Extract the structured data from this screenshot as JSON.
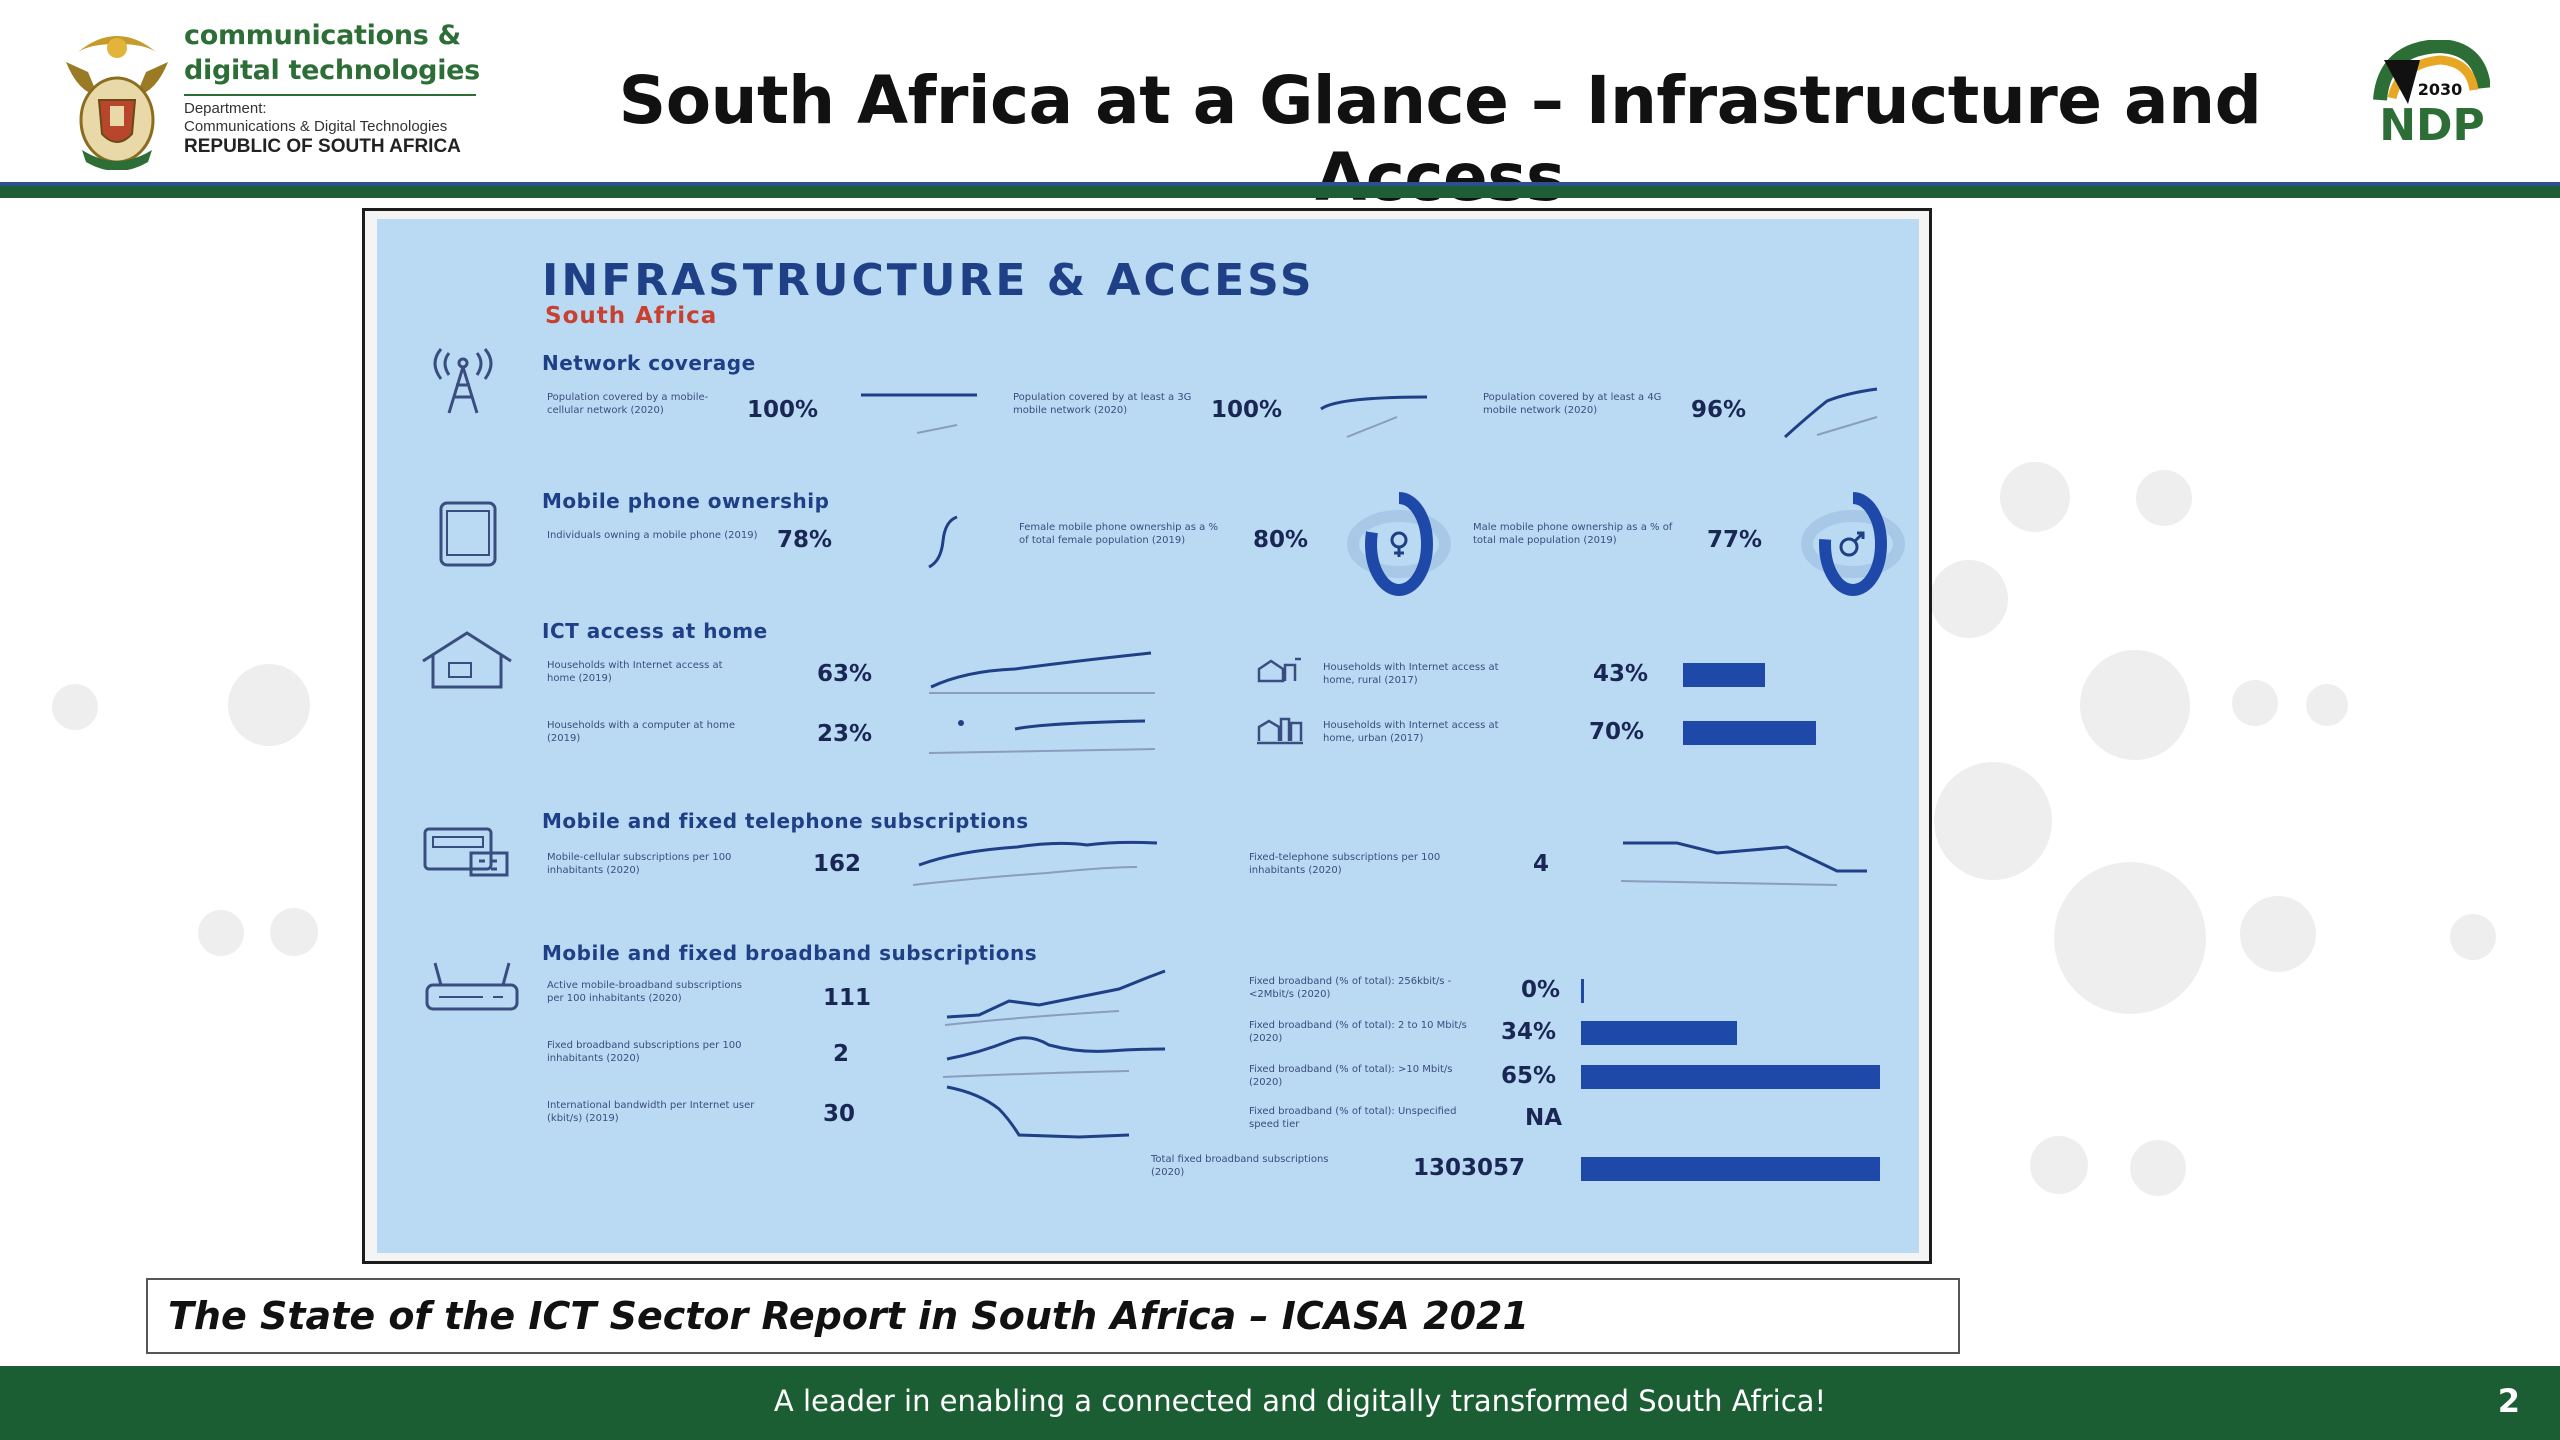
{
  "header": {
    "department_name_line1": "communications &",
    "department_name_line2": "digital technologies",
    "department_label": "Department:",
    "department_full": "Communications & Digital Technologies",
    "republic": "REPUBLIC OF SOUTH AFRICA",
    "title": "South Africa at a Glance – Infrastructure and Access",
    "ndp_year": "2030",
    "ndp_text": "NDP"
  },
  "infographic": {
    "title": "INFRASTRUCTURE & ACCESS",
    "subtitle": "South Africa",
    "network_coverage": {
      "heading": "Network coverage",
      "items": [
        {
          "desc": "Population covered by a mobile-cellular network (2020)",
          "value": "100%"
        },
        {
          "desc": "Population covered by at least a 3G mobile network (2020)",
          "value": "100%"
        },
        {
          "desc": "Population covered by at least a 4G mobile network (2020)",
          "value": "96%"
        }
      ]
    },
    "mobile_ownership": {
      "heading": "Mobile phone ownership",
      "items": [
        {
          "desc": "Individuals owning a mobile phone (2019)",
          "value": "78%"
        },
        {
          "desc": "Female mobile phone ownership as a % of total female population (2019)",
          "value": "80%",
          "ring_fraction": 0.8
        },
        {
          "desc": "Male mobile phone ownership as a % of total male population (2019)",
          "value": "77%",
          "ring_fraction": 0.77
        }
      ]
    },
    "ict_home": {
      "heading": "ICT access at home",
      "items": [
        {
          "desc": "Households with Internet access at home (2019)",
          "value": "63%"
        },
        {
          "desc": "Households with a computer at home (2019)",
          "value": "23%"
        },
        {
          "desc": "Households with Internet access at home, rural (2017)",
          "value": "43%",
          "bar_fraction": 0.43
        },
        {
          "desc": "Households with Internet access at home, urban (2017)",
          "value": "70%",
          "bar_fraction": 0.7
        }
      ]
    },
    "telephone": {
      "heading": "Mobile and fixed telephone subscriptions",
      "items": [
        {
          "desc": "Mobile-cellular subscriptions per 100 inhabitants (2020)",
          "value": "162"
        },
        {
          "desc": "Fixed-telephone subscriptions per 100 inhabitants (2020)",
          "value": "4"
        }
      ]
    },
    "broadband": {
      "heading": "Mobile and fixed broadband subscriptions",
      "left_items": [
        {
          "desc": "Active mobile-broadband subscriptions per 100 inhabitants (2020)",
          "value": "111"
        },
        {
          "desc": "Fixed broadband subscriptions per 100 inhabitants (2020)",
          "value": "2"
        },
        {
          "desc": "International bandwidth per Internet user (kbit/s) (2019)",
          "value": "30"
        }
      ],
      "right_items": [
        {
          "desc": "Fixed broadband (% of total): 256kbit/s - <2Mbit/s (2020)",
          "value": "0%",
          "bar_fraction": 0.0
        },
        {
          "desc": "Fixed broadband (% of total): 2 to 10 Mbit/s (2020)",
          "value": "34%",
          "bar_fraction": 0.34
        },
        {
          "desc": "Fixed broadband (% of total): >10 Mbit/s (2020)",
          "value": "65%",
          "bar_fraction": 0.65
        },
        {
          "desc": "Fixed broadband (% of total): Unspecified speed tier",
          "value": "NA",
          "bar_fraction": 0.0
        },
        {
          "desc": "Total fixed broadband subscriptions (2020)",
          "value": "1303057",
          "bar_fraction": 0.65
        }
      ]
    }
  },
  "source": "The State of the ICT Sector Report in South Africa – ICASA 2021",
  "footer": {
    "tagline": "A leader in enabling a connected and digitally transformed South Africa!",
    "page_number": "2"
  },
  "colors": {
    "green_dark": "#1c5e34",
    "infographic_bg": "#b9daf2",
    "infographic_blue": "#1f3f86",
    "bar_blue": "#1f49a8",
    "subtitle_red": "#c8402f"
  }
}
